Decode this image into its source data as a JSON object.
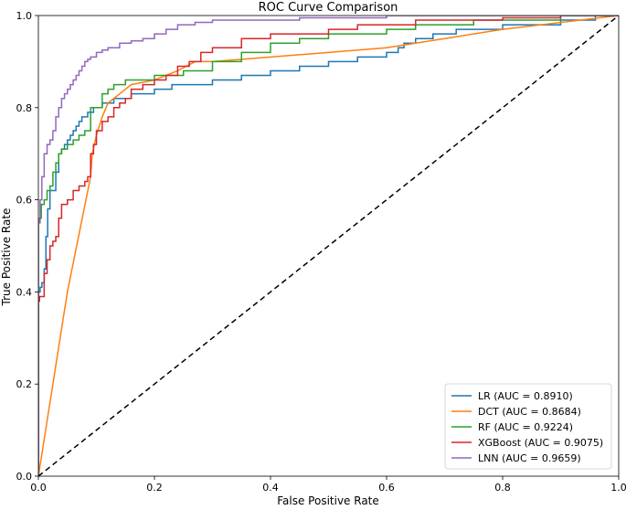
{
  "chart_data": {
    "type": "line",
    "title": "ROC Curve Comparison",
    "xlabel": "False Positive Rate",
    "ylabel": "True Positive Rate",
    "xlim": [
      0,
      1
    ],
    "ylim": [
      0,
      1
    ],
    "xticks": [
      "0.0",
      "0.2",
      "0.4",
      "0.6",
      "0.8",
      "1.0"
    ],
    "yticks": [
      "0.0",
      "0.2",
      "0.4",
      "0.6",
      "0.8",
      "1.0"
    ],
    "grid": false,
    "legend_position": "lower right",
    "series": [
      {
        "name": "LR (AUC = 0.8910)",
        "color": "#1f77b4",
        "style": "step",
        "x": [
          0,
          0.003,
          0.006,
          0.01,
          0.013,
          0.016,
          0.02,
          0.02,
          0.03,
          0.035,
          0.04,
          0.045,
          0.05,
          0.055,
          0.06,
          0.065,
          0.07,
          0.075,
          0.08,
          0.085,
          0.09,
          0.095,
          0.1,
          0.11,
          0.12,
          0.13,
          0.14,
          0.16,
          0.18,
          0.2,
          0.22,
          0.23,
          0.25,
          0.27,
          0.3,
          0.33,
          0.35,
          0.38,
          0.4,
          0.42,
          0.45,
          0.48,
          0.5,
          0.53,
          0.55,
          0.57,
          0.6,
          0.61,
          0.62,
          0.63,
          0.65,
          0.68,
          0.7,
          0.72,
          0.75,
          0.8,
          0.85,
          0.9,
          0.93,
          0.96,
          1.0
        ],
        "y": [
          0.4,
          0.41,
          0.42,
          0.45,
          0.52,
          0.58,
          0.6,
          0.62,
          0.66,
          0.7,
          0.71,
          0.72,
          0.73,
          0.74,
          0.75,
          0.76,
          0.77,
          0.78,
          0.78,
          0.79,
          0.79,
          0.8,
          0.8,
          0.81,
          0.81,
          0.82,
          0.82,
          0.83,
          0.83,
          0.84,
          0.84,
          0.85,
          0.85,
          0.85,
          0.86,
          0.86,
          0.87,
          0.87,
          0.88,
          0.88,
          0.89,
          0.89,
          0.9,
          0.9,
          0.91,
          0.91,
          0.92,
          0.92,
          0.93,
          0.94,
          0.95,
          0.96,
          0.96,
          0.97,
          0.97,
          0.98,
          0.98,
          0.99,
          0.99,
          1.0,
          1.0
        ]
      },
      {
        "name": "DCT (AUC = 0.8684)",
        "color": "#ff7f0e",
        "style": "line",
        "x": [
          0,
          0.05,
          0.09,
          0.093,
          0.1,
          0.11,
          0.12,
          0.14,
          0.16,
          0.2,
          0.24,
          0.27,
          0.3,
          0.4,
          0.5,
          0.6,
          0.7,
          0.8,
          0.9,
          1.0
        ],
        "y": [
          0,
          0.4,
          0.65,
          0.7,
          0.74,
          0.78,
          0.81,
          0.83,
          0.85,
          0.86,
          0.88,
          0.9,
          0.9,
          0.91,
          0.92,
          0.93,
          0.95,
          0.97,
          0.985,
          1.0
        ],
        "shape": "curve"
      },
      {
        "name": "RF (AUC = 0.9224)",
        "color": "#2ca02c",
        "style": "step",
        "x": [
          0,
          0.002,
          0.005,
          0.01,
          0.015,
          0.02,
          0.025,
          0.03,
          0.035,
          0.04,
          0.05,
          0.06,
          0.07,
          0.08,
          0.09,
          0.1,
          0.11,
          0.12,
          0.13,
          0.15,
          0.2,
          0.25,
          0.3,
          0.35,
          0.4,
          0.45,
          0.5,
          0.55,
          0.6,
          0.65,
          0.7,
          0.75,
          0.8,
          0.85,
          0.9,
          0.95,
          1.0
        ],
        "y": [
          0.55,
          0.56,
          0.59,
          0.6,
          0.62,
          0.63,
          0.66,
          0.68,
          0.7,
          0.71,
          0.72,
          0.73,
          0.74,
          0.75,
          0.8,
          0.8,
          0.83,
          0.84,
          0.85,
          0.86,
          0.87,
          0.88,
          0.9,
          0.92,
          0.94,
          0.95,
          0.96,
          0.96,
          0.97,
          0.98,
          0.98,
          0.99,
          0.99,
          0.99,
          1.0,
          1.0,
          1.0
        ]
      },
      {
        "name": "XGBoost (AUC = 0.9075)",
        "color": "#d62728",
        "style": "step",
        "x": [
          0,
          0.002,
          0.01,
          0.015,
          0.02,
          0.025,
          0.03,
          0.035,
          0.04,
          0.05,
          0.06,
          0.07,
          0.08,
          0.085,
          0.09,
          0.095,
          0.1,
          0.11,
          0.12,
          0.13,
          0.14,
          0.15,
          0.16,
          0.18,
          0.2,
          0.22,
          0.24,
          0.26,
          0.28,
          0.3,
          0.35,
          0.4,
          0.45,
          0.5,
          0.55,
          0.6,
          0.65,
          0.7,
          0.75,
          0.8,
          0.85,
          0.9,
          0.95,
          1.0
        ],
        "y": [
          0.38,
          0.39,
          0.44,
          0.47,
          0.5,
          0.51,
          0.52,
          0.56,
          0.59,
          0.6,
          0.62,
          0.63,
          0.64,
          0.65,
          0.7,
          0.72,
          0.75,
          0.77,
          0.78,
          0.8,
          0.81,
          0.82,
          0.84,
          0.85,
          0.86,
          0.87,
          0.89,
          0.9,
          0.92,
          0.93,
          0.95,
          0.96,
          0.96,
          0.97,
          0.98,
          0.98,
          0.99,
          0.99,
          0.99,
          0.995,
          0.995,
          1.0,
          1.0,
          1.0
        ]
      },
      {
        "name": "LNN (AUC = 0.9659)",
        "color": "#9467bd",
        "style": "step",
        "x": [
          0,
          0.003,
          0.006,
          0.01,
          0.015,
          0.02,
          0.025,
          0.03,
          0.035,
          0.04,
          0.045,
          0.05,
          0.055,
          0.06,
          0.065,
          0.07,
          0.075,
          0.08,
          0.085,
          0.09,
          0.1,
          0.11,
          0.12,
          0.14,
          0.16,
          0.18,
          0.2,
          0.22,
          0.24,
          0.27,
          0.3,
          0.35,
          0.4,
          0.45,
          0.5,
          0.55,
          0.6,
          0.65,
          0.7,
          0.75,
          0.8,
          0.85,
          0.9,
          0.95,
          1.0
        ],
        "y": [
          0.55,
          0.6,
          0.65,
          0.7,
          0.72,
          0.73,
          0.75,
          0.78,
          0.8,
          0.82,
          0.83,
          0.84,
          0.85,
          0.86,
          0.87,
          0.88,
          0.89,
          0.9,
          0.905,
          0.91,
          0.92,
          0.925,
          0.93,
          0.94,
          0.945,
          0.95,
          0.96,
          0.97,
          0.98,
          0.985,
          0.99,
          0.99,
          0.99,
          0.995,
          0.995,
          0.995,
          1.0,
          1.0,
          1.0,
          1.0,
          1.0,
          1.0,
          1.0,
          1.0,
          1.0
        ]
      }
    ],
    "reference_line": {
      "x": [
        0,
        1
      ],
      "y": [
        0,
        1
      ],
      "color": "#000000",
      "dash": "dashed"
    }
  }
}
